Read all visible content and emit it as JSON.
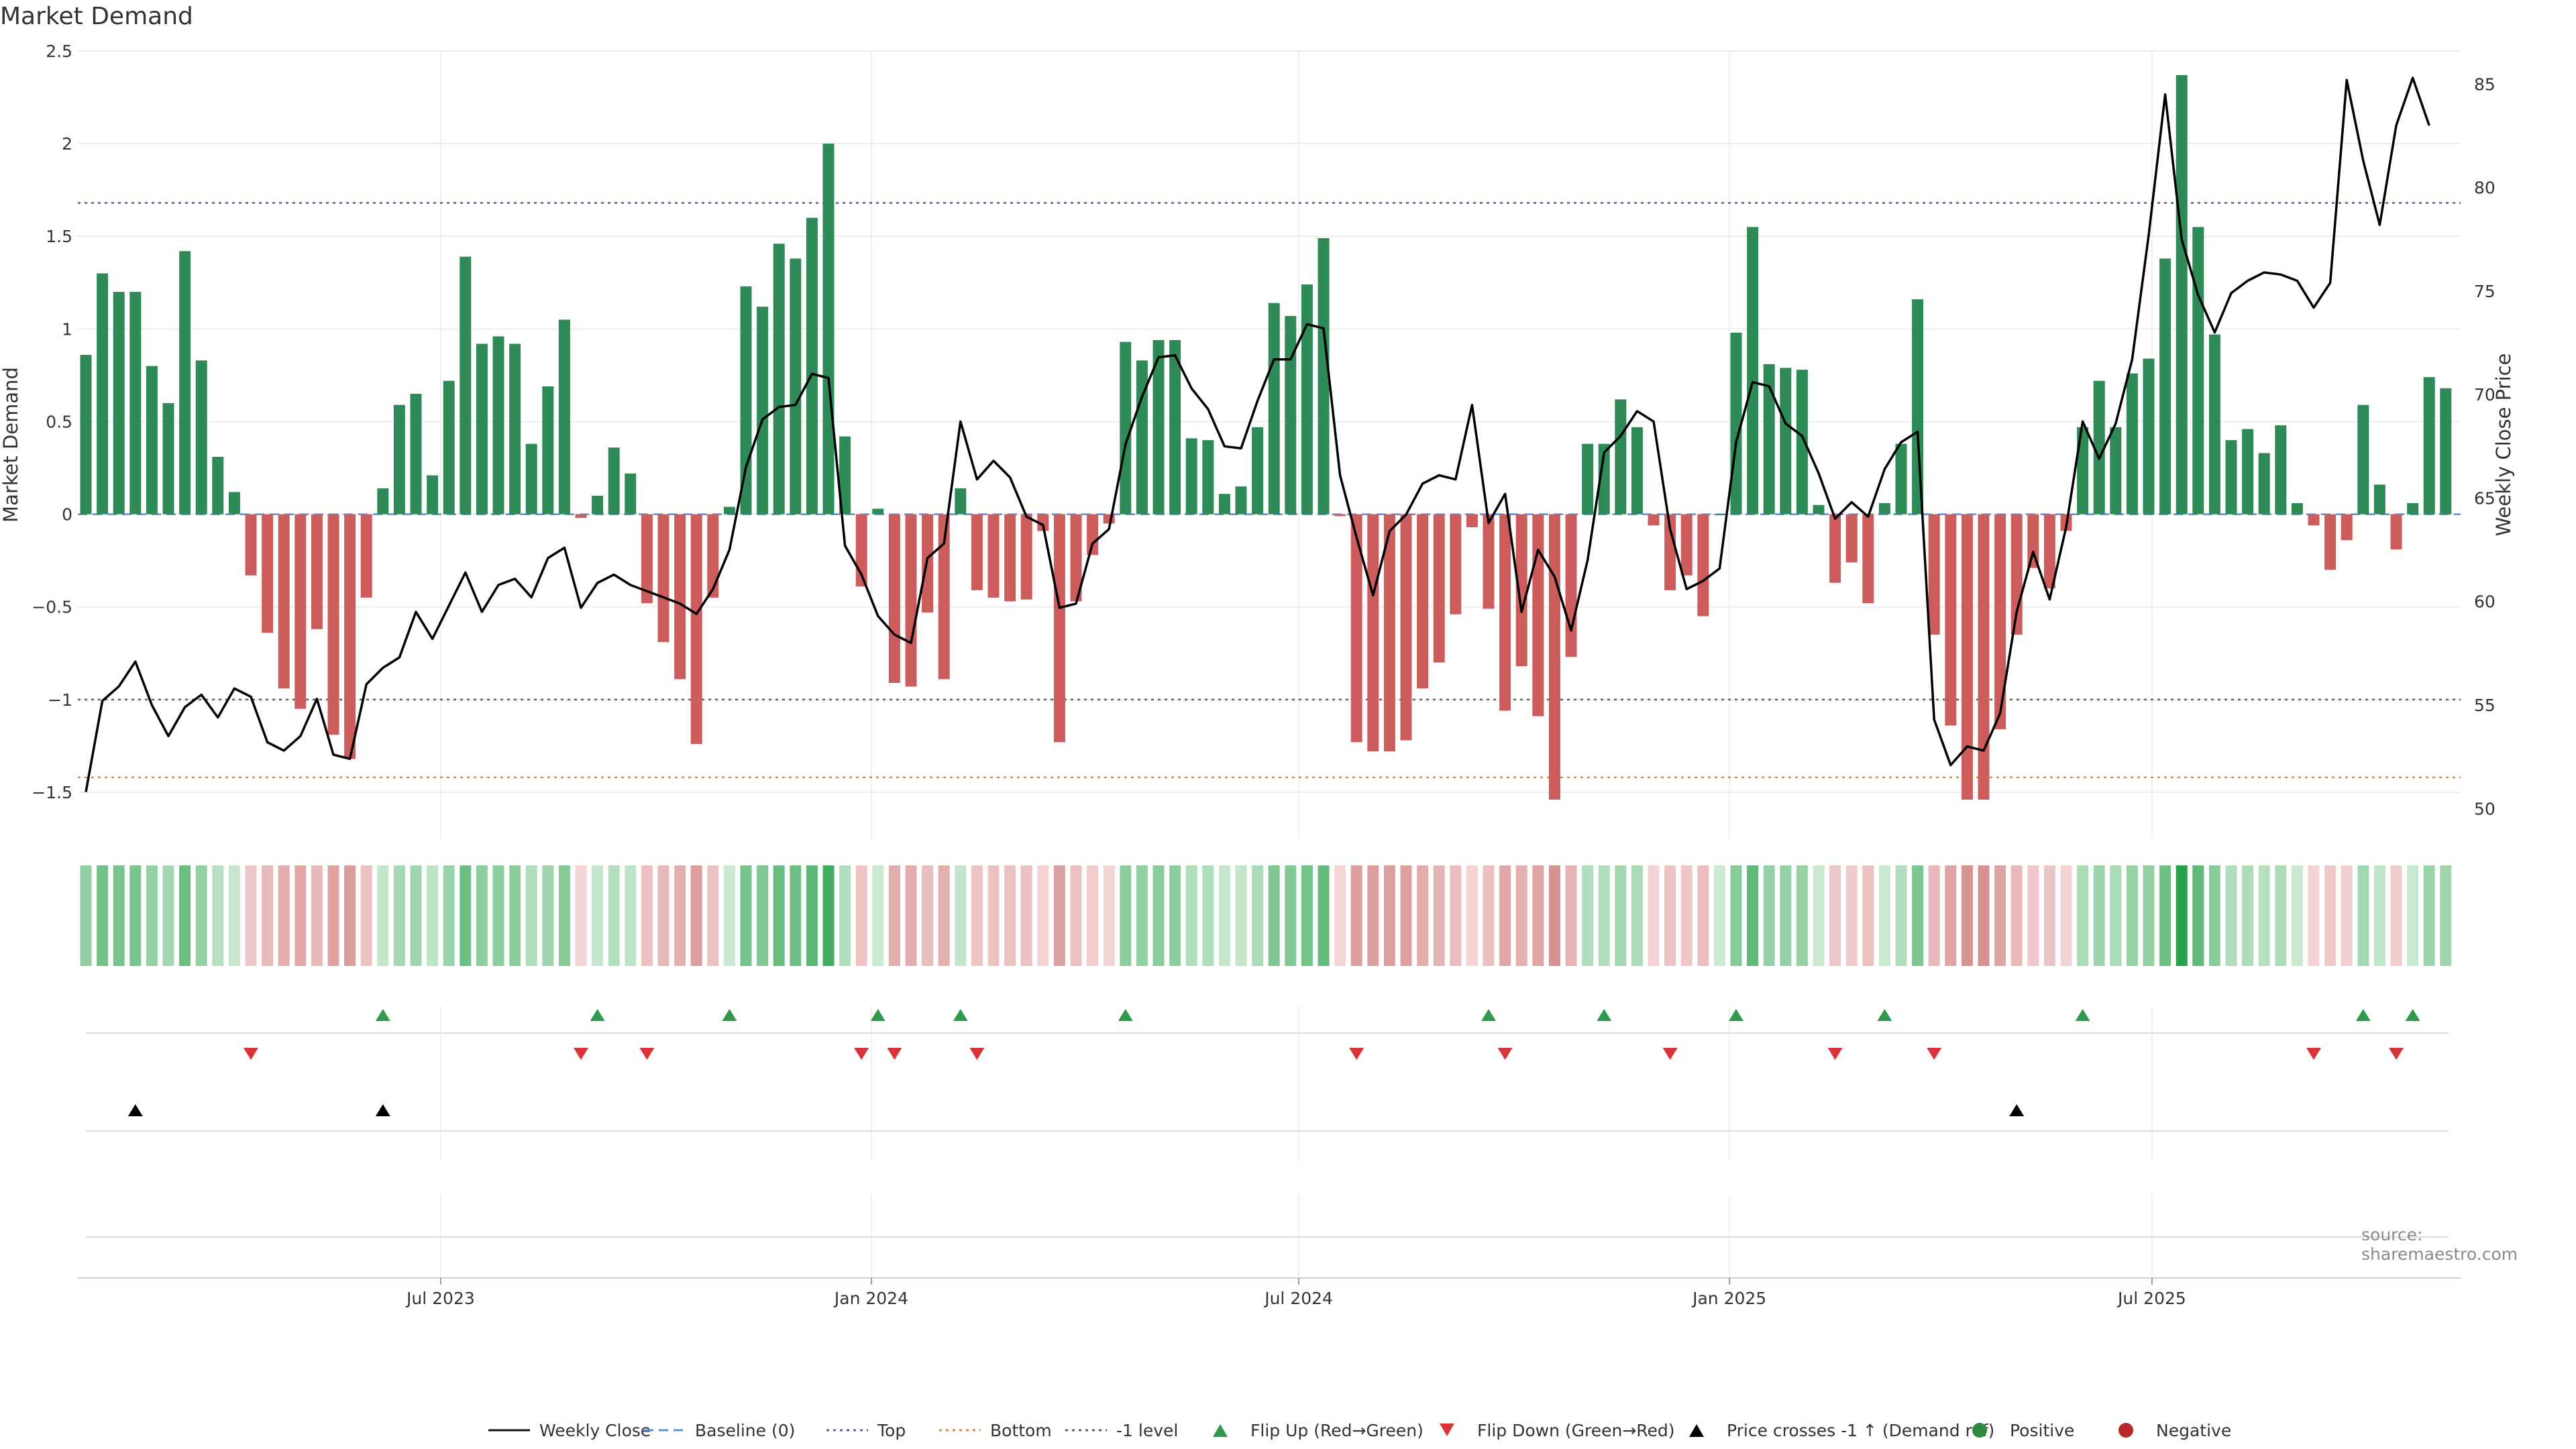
{
  "chart_data": {
    "type": "bar",
    "title": "Market Demand",
    "ylabel": "Market Demand",
    "y2label": "Weekly Close Price",
    "ylim": [
      -1.75,
      2.5
    ],
    "y2lim": [
      48.55,
      86.6
    ],
    "yticks": [
      -1.5,
      -1,
      -0.5,
      0,
      0.5,
      1,
      1.5,
      2,
      2.5
    ],
    "ytick_labels": [
      "−1.5",
      "−1",
      "−0.5",
      "0",
      "0.5",
      "1",
      "1.5",
      "2",
      "2.5"
    ],
    "y2ticks": [
      50,
      55,
      60,
      65,
      70,
      75,
      80,
      85
    ],
    "y2tick_labels": [
      "50",
      "55",
      "60",
      "65",
      "70",
      "75",
      "80",
      "85"
    ],
    "xticks": [
      {
        "label": "Jul 2023",
        "index": 21.5
      },
      {
        "label": "Jan 2024",
        "index": 47.6
      },
      {
        "label": "Jul 2024",
        "index": 73.5
      },
      {
        "label": "Jan 2025",
        "index": 99.6
      },
      {
        "label": "Jul 2025",
        "index": 125.2
      }
    ],
    "reference_lines": [
      {
        "name": "Top",
        "value": 1.68,
        "color": "#5e5e8a",
        "style": "dotted"
      },
      {
        "name": "-1 level",
        "value": -1,
        "color": "#5e5e5e",
        "style": "dotted"
      },
      {
        "name": "Bottom",
        "value": -1.42,
        "color": "#d98a3a",
        "style": "dotted"
      },
      {
        "name": "Baseline (0)",
        "value": 0,
        "color": "#5b8fd6",
        "style": "dashed"
      }
    ],
    "demand": [
      0.86,
      1.3,
      1.2,
      1.2,
      0.8,
      0.6,
      1.42,
      0.83,
      0.31,
      0.12,
      -0.33,
      -0.64,
      -0.94,
      -1.05,
      -0.62,
      -1.19,
      -1.32,
      -0.45,
      0.14,
      0.59,
      0.65,
      0.21,
      0.72,
      1.39,
      0.92,
      0.96,
      0.92,
      0.38,
      0.69,
      1.05,
      -0.02,
      0.1,
      0.36,
      0.22,
      -0.48,
      -0.69,
      -0.89,
      -1.24,
      -0.45,
      0.04,
      1.23,
      1.12,
      1.46,
      1.38,
      1.6,
      2.0,
      0.42,
      -0.39,
      0.03,
      -0.91,
      -0.93,
      -0.53,
      -0.89,
      0.14,
      -0.41,
      -0.45,
      -0.47,
      -0.46,
      -0.09,
      -1.23,
      -0.47,
      -0.22,
      -0.05,
      0.93,
      0.83,
      0.94,
      0.94,
      0.41,
      0.4,
      0.11,
      0.15,
      0.47,
      1.14,
      1.07,
      1.24,
      1.49,
      -0.01,
      -1.23,
      -1.28,
      -1.28,
      -1.22,
      -0.94,
      -0.8,
      -0.54,
      -0.07,
      -0.51,
      -1.06,
      -0.82,
      -1.09,
      -1.54,
      -0.77,
      0.38,
      0.38,
      0.62,
      0.47,
      -0.06,
      -0.41,
      -0.33,
      -0.55,
      0.0,
      0.98,
      1.55,
      0.81,
      0.79,
      0.78,
      0.05,
      -0.37,
      -0.26,
      -0.48,
      0.06,
      0.38,
      1.16,
      -0.65,
      -1.14,
      -1.54,
      -1.54,
      -1.16,
      -0.65,
      -0.29,
      -0.4,
      -0.09,
      0.47,
      0.72,
      0.47,
      0.76,
      0.84,
      1.38,
      2.37,
      1.55,
      0.97,
      0.4,
      0.46,
      0.33,
      0.48,
      0.06,
      -0.06,
      -0.3,
      -0.14,
      0.59,
      0.16,
      -0.19,
      0.06,
      0.74,
      0.68
    ],
    "weekly_close": [
      50.8,
      55.2,
      55.9,
      57.1,
      55.0,
      53.5,
      54.9,
      55.5,
      54.4,
      55.8,
      55.4,
      53.2,
      52.8,
      53.5,
      55.3,
      52.6,
      52.4,
      56.0,
      56.8,
      57.3,
      59.5,
      58.2,
      59.8,
      61.4,
      59.5,
      60.8,
      61.1,
      60.2,
      62.1,
      62.6,
      59.7,
      60.9,
      61.3,
      60.8,
      60.5,
      60.2,
      59.9,
      59.4,
      60.6,
      62.5,
      66.5,
      68.8,
      69.4,
      69.5,
      71.0,
      70.8,
      62.7,
      61.3,
      59.3,
      58.4,
      58.0,
      62.1,
      62.8,
      68.7,
      65.9,
      66.8,
      66.0,
      64.1,
      63.7,
      59.7,
      59.9,
      62.8,
      63.5,
      67.6,
      69.9,
      71.8,
      71.9,
      70.3,
      69.3,
      67.5,
      67.4,
      69.7,
      71.7,
      71.7,
      73.4,
      73.2,
      66.1,
      63.1,
      60.3,
      63.4,
      64.2,
      65.7,
      66.1,
      65.9,
      69.5,
      63.8,
      65.2,
      59.5,
      62.5,
      61.2,
      58.6,
      62.0,
      67.2,
      68.0,
      69.2,
      68.7,
      63.5,
      60.6,
      61.0,
      61.6,
      67.7,
      70.6,
      70.4,
      68.6,
      68.0,
      66.2,
      64.0,
      64.8,
      64.1,
      66.4,
      67.7,
      68.2,
      54.3,
      52.1,
      53.0,
      52.8,
      54.6,
      59.5,
      62.4,
      60.1,
      63.6,
      68.7,
      66.9,
      68.6,
      71.7,
      77.7,
      84.5,
      77.5,
      74.8,
      73.0,
      74.9,
      75.5,
      75.9,
      75.8,
      75.5,
      74.2,
      75.4,
      85.2,
      81.3,
      78.2,
      83.0,
      85.3,
      83.0
    ],
    "flip_up_indices": [
      18,
      31,
      39,
      48,
      53,
      63,
      85,
      92,
      100,
      109,
      121,
      138,
      141
    ],
    "flip_down_indices": [
      10,
      30,
      34,
      47,
      49,
      54,
      77,
      86,
      96,
      106,
      112,
      135,
      140
    ],
    "price_cross_indices": [
      3,
      18,
      117
    ],
    "source": "source: sharemaestro.com",
    "legend": [
      {
        "label": "Weekly Close",
        "kind": "line-solid",
        "color": "#111111"
      },
      {
        "label": "Baseline (0)",
        "kind": "line-dashed",
        "color": "#5b8fd6"
      },
      {
        "label": "Top",
        "kind": "line-dotted",
        "color": "#5e5e8a"
      },
      {
        "label": "Bottom",
        "kind": "line-dotted",
        "color": "#d98a3a"
      },
      {
        "label": "-1 level",
        "kind": "line-dotted",
        "color": "#5e5e5e"
      },
      {
        "label": "Flip Up (Red→Green)",
        "kind": "triangle-up",
        "color": "#2e9a4a"
      },
      {
        "label": "Flip Down (Green→Red)",
        "kind": "triangle-down",
        "color": "#d9333a"
      },
      {
        "label": "Price crosses -1 ↑ (Demand ref)",
        "kind": "triangle-up",
        "color": "#000000"
      },
      {
        "label": "Positive",
        "kind": "circle",
        "color": "#2e8b3e"
      },
      {
        "label": "Negative",
        "kind": "circle",
        "color": "#b82a2a"
      }
    ],
    "colors": {
      "positive": "#2e8b57",
      "negative": "#cd5c5c",
      "price": "#000000",
      "grid": "#ececec"
    }
  }
}
